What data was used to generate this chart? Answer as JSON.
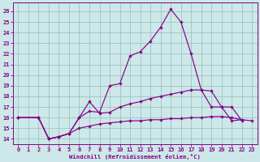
{
  "bg_color": "#cce8e8",
  "line_color": "#880088",
  "grid_color": "#99bbbb",
  "xlabel": "Windchill (Refroidissement éolien,°C)",
  "ylim": [
    13.5,
    26.8
  ],
  "xlim": [
    -0.5,
    23.5
  ],
  "yticks": [
    14,
    15,
    16,
    17,
    18,
    19,
    20,
    21,
    22,
    23,
    24,
    25,
    26
  ],
  "xticks": [
    0,
    1,
    2,
    3,
    4,
    5,
    6,
    7,
    8,
    9,
    10,
    11,
    12,
    13,
    14,
    15,
    16,
    17,
    18,
    19,
    20,
    21,
    22,
    23
  ],
  "line_high_x": [
    0,
    2,
    3,
    4,
    5,
    6,
    7,
    8,
    9,
    10,
    11,
    12,
    13,
    14,
    15,
    16,
    17,
    18,
    19,
    20,
    21,
    22
  ],
  "line_high_y": [
    16.0,
    16.0,
    14.0,
    14.2,
    14.5,
    16.0,
    16.6,
    16.5,
    19.0,
    19.2,
    21.8,
    22.2,
    23.2,
    24.5,
    26.2,
    25.0,
    22.0,
    18.6,
    17.0,
    17.0,
    15.7,
    15.8
  ],
  "line_mid_x": [
    0,
    2,
    3,
    4,
    5,
    6,
    7,
    8,
    9,
    10,
    11,
    12,
    13,
    14,
    15,
    16,
    17,
    18,
    19,
    20,
    21,
    22
  ],
  "line_mid_y": [
    16.0,
    16.0,
    14.0,
    14.2,
    14.5,
    16.0,
    17.5,
    16.4,
    16.5,
    17.0,
    17.3,
    17.5,
    17.8,
    18.0,
    18.2,
    18.4,
    18.6,
    18.6,
    18.5,
    17.0,
    17.0,
    15.7
  ],
  "line_low_x": [
    0,
    2,
    3,
    4,
    5,
    6,
    7,
    8,
    9,
    10,
    11,
    12,
    13,
    14,
    15,
    16,
    17,
    18,
    19,
    20,
    21,
    22,
    23
  ],
  "line_low_y": [
    16.0,
    16.0,
    14.0,
    14.2,
    14.5,
    15.0,
    15.2,
    15.4,
    15.5,
    15.6,
    15.7,
    15.7,
    15.8,
    15.8,
    15.9,
    15.9,
    16.0,
    16.0,
    16.1,
    16.1,
    16.0,
    15.8,
    15.7
  ]
}
